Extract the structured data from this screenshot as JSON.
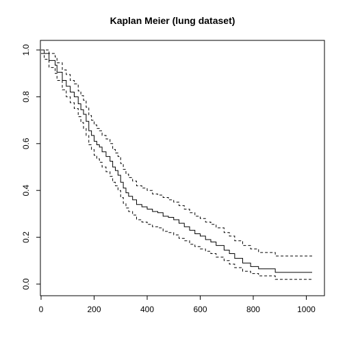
{
  "chart_data": {
    "type": "line",
    "title": "Kaplan Meier (lung dataset)",
    "xlabel": "",
    "ylabel": "",
    "xlim": [
      0,
      1022
    ],
    "ylim": [
      0,
      1
    ],
    "x_ticks": [
      0,
      200,
      400,
      600,
      800,
      1000
    ],
    "y_ticks": [
      0.0,
      0.2,
      0.4,
      0.6,
      0.8,
      1.0
    ],
    "x_tick_labels": [
      "0",
      "200",
      "400",
      "600",
      "800",
      "1000"
    ],
    "y_tick_labels": [
      "0.0",
      "0.2",
      "0.4",
      "0.6",
      "0.8",
      "1.0"
    ],
    "legend": "none",
    "grid": false,
    "series": [
      {
        "role": "survival",
        "linestyle": "solid",
        "x": [
          0,
          12,
          30,
          53,
          60,
          80,
          95,
          110,
          125,
          140,
          150,
          160,
          170,
          180,
          190,
          200,
          210,
          220,
          230,
          245,
          260,
          270,
          280,
          290,
          300,
          310,
          320,
          330,
          345,
          360,
          380,
          400,
          420,
          440,
          460,
          480,
          500,
          520,
          540,
          560,
          580,
          600,
          620,
          640,
          660,
          690,
          710,
          730,
          760,
          790,
          820,
          883,
          1022
        ],
        "y": [
          1.0,
          0.985,
          0.955,
          0.935,
          0.905,
          0.87,
          0.845,
          0.82,
          0.8,
          0.77,
          0.745,
          0.725,
          0.695,
          0.655,
          0.635,
          0.61,
          0.595,
          0.585,
          0.565,
          0.545,
          0.525,
          0.5,
          0.485,
          0.465,
          0.435,
          0.41,
          0.39,
          0.375,
          0.36,
          0.34,
          0.33,
          0.32,
          0.31,
          0.305,
          0.29,
          0.285,
          0.275,
          0.26,
          0.245,
          0.23,
          0.215,
          0.205,
          0.19,
          0.18,
          0.165,
          0.145,
          0.13,
          0.11,
          0.09,
          0.075,
          0.065,
          0.05,
          0.05
        ]
      },
      {
        "role": "upper-confidence-bound",
        "linestyle": "dashed",
        "x": [
          0,
          12,
          30,
          53,
          60,
          80,
          95,
          110,
          125,
          140,
          150,
          160,
          170,
          180,
          190,
          200,
          210,
          220,
          230,
          245,
          260,
          270,
          280,
          290,
          300,
          310,
          320,
          330,
          345,
          360,
          380,
          400,
          420,
          440,
          460,
          480,
          500,
          520,
          540,
          560,
          580,
          600,
          620,
          640,
          660,
          690,
          710,
          730,
          760,
          790,
          820,
          883,
          1022
        ],
        "y": [
          1.0,
          1.0,
          0.985,
          0.97,
          0.945,
          0.915,
          0.895,
          0.87,
          0.855,
          0.825,
          0.805,
          0.785,
          0.755,
          0.72,
          0.7,
          0.68,
          0.665,
          0.655,
          0.635,
          0.62,
          0.6,
          0.575,
          0.56,
          0.545,
          0.515,
          0.49,
          0.47,
          0.455,
          0.44,
          0.42,
          0.41,
          0.4,
          0.385,
          0.38,
          0.37,
          0.36,
          0.35,
          0.335,
          0.32,
          0.305,
          0.29,
          0.28,
          0.265,
          0.255,
          0.24,
          0.22,
          0.205,
          0.185,
          0.165,
          0.15,
          0.135,
          0.12,
          0.12
        ]
      },
      {
        "role": "lower-confidence-bound",
        "linestyle": "dashed",
        "x": [
          0,
          12,
          30,
          53,
          60,
          80,
          95,
          110,
          125,
          140,
          150,
          160,
          170,
          180,
          190,
          200,
          210,
          220,
          230,
          245,
          260,
          270,
          280,
          290,
          300,
          310,
          320,
          330,
          345,
          360,
          380,
          400,
          420,
          440,
          460,
          480,
          500,
          520,
          540,
          560,
          580,
          600,
          620,
          640,
          660,
          690,
          710,
          730,
          760,
          790,
          820,
          883,
          1022
        ],
        "y": [
          0.985,
          0.96,
          0.925,
          0.9,
          0.87,
          0.83,
          0.8,
          0.775,
          0.75,
          0.715,
          0.69,
          0.665,
          0.635,
          0.595,
          0.575,
          0.55,
          0.535,
          0.52,
          0.5,
          0.48,
          0.46,
          0.435,
          0.42,
          0.4,
          0.37,
          0.345,
          0.325,
          0.31,
          0.295,
          0.275,
          0.265,
          0.255,
          0.245,
          0.24,
          0.225,
          0.22,
          0.21,
          0.195,
          0.185,
          0.17,
          0.16,
          0.15,
          0.14,
          0.13,
          0.115,
          0.1,
          0.085,
          0.07,
          0.055,
          0.045,
          0.035,
          0.02,
          0.02
        ]
      }
    ]
  }
}
